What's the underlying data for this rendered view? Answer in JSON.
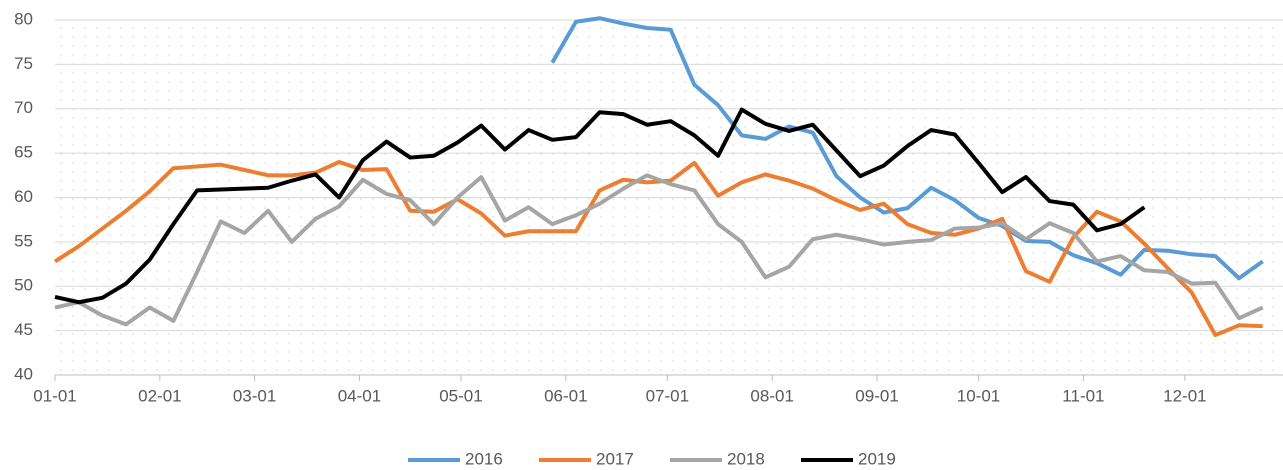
{
  "chart_data": {
    "type": "line",
    "x": [
      0,
      7,
      14,
      21,
      28,
      35,
      42,
      49,
      56,
      63,
      70,
      77,
      84,
      91,
      98,
      105,
      112,
      119,
      126,
      133,
      140,
      147,
      154,
      161,
      168,
      175,
      182,
      189,
      196,
      203,
      210,
      217,
      224,
      231,
      238,
      245,
      252,
      259,
      266,
      273,
      280,
      287,
      294,
      301,
      308,
      315,
      322,
      329,
      336,
      343,
      350,
      357
    ],
    "xlim": [
      0,
      363
    ],
    "xticks": [
      {
        "value": 0,
        "label": "01-01"
      },
      {
        "value": 31,
        "label": "02-01"
      },
      {
        "value": 59,
        "label": "03-01"
      },
      {
        "value": 90,
        "label": "04-01"
      },
      {
        "value": 120,
        "label": "05-01"
      },
      {
        "value": 151,
        "label": "06-01"
      },
      {
        "value": 181,
        "label": "07-01"
      },
      {
        "value": 212,
        "label": "08-01"
      },
      {
        "value": 243,
        "label": "09-01"
      },
      {
        "value": 273,
        "label": "10-01"
      },
      {
        "value": 304,
        "label": "11-01"
      },
      {
        "value": 334,
        "label": "12-01"
      }
    ],
    "ylim": [
      40,
      80
    ],
    "yticks": [
      40,
      45,
      50,
      55,
      60,
      65,
      70,
      75,
      80
    ],
    "grid": true,
    "legend": "bottom",
    "series": [
      {
        "name": "2016",
        "color": "#5b9bd5",
        "values": [
          null,
          null,
          null,
          null,
          null,
          null,
          null,
          null,
          null,
          null,
          null,
          null,
          null,
          null,
          null,
          null,
          null,
          null,
          null,
          null,
          null,
          75.2,
          79.8,
          80.2,
          79.6,
          79.1,
          78.9,
          72.7,
          70.4,
          67.0,
          66.6,
          68.0,
          67.3,
          62.4,
          60.0,
          58.3,
          58.8,
          61.1,
          59.7,
          57.7,
          56.8,
          55.1,
          55.0,
          53.5,
          52.6,
          51.3,
          54.1,
          54.0,
          53.6,
          53.4,
          50.9,
          52.8
        ]
      },
      {
        "name": "2017",
        "color": "#ed7d31",
        "values": [
          52.8,
          54.5,
          56.5,
          58.5,
          60.7,
          63.3,
          63.5,
          63.7,
          63.1,
          62.5,
          62.5,
          62.8,
          64.0,
          63.1,
          63.2,
          58.5,
          58.4,
          59.8,
          58.2,
          55.7,
          56.2,
          56.2,
          56.2,
          60.8,
          62.0,
          61.7,
          61.9,
          63.9,
          60.2,
          61.7,
          62.6,
          61.9,
          61.0,
          59.7,
          58.6,
          59.3,
          57.0,
          56.0,
          55.8,
          56.5,
          57.6,
          51.7,
          50.5,
          55.5,
          58.4,
          57.3,
          54.8,
          52.0,
          49.3,
          44.5,
          45.6,
          45.5
        ]
      },
      {
        "name": "2018",
        "color": "#a5a5a5",
        "values": [
          47.6,
          48.2,
          46.7,
          45.7,
          47.6,
          46.1,
          51.6,
          57.3,
          56.0,
          58.5,
          55.0,
          57.6,
          59.0,
          62.0,
          60.4,
          59.7,
          57.0,
          60.0,
          62.3,
          57.4,
          58.9,
          57.0,
          58.0,
          59.3,
          61.0,
          62.5,
          61.5,
          60.8,
          57.0,
          55.0,
          51.0,
          52.2,
          55.3,
          55.8,
          55.3,
          54.7,
          55.0,
          55.2,
          56.5,
          56.6,
          57.1,
          55.3,
          57.1,
          56.0,
          52.8,
          53.4,
          51.8,
          51.6,
          50.3,
          50.4,
          46.4,
          47.6
        ]
      },
      {
        "name": "2019",
        "color": "#000000",
        "values": [
          48.8,
          48.2,
          48.7,
          50.3,
          53.0,
          57.0,
          60.8,
          60.9,
          61.0,
          61.1,
          61.9,
          62.6,
          60.0,
          64.2,
          66.3,
          64.5,
          64.7,
          66.2,
          68.1,
          65.4,
          67.6,
          66.5,
          66.8,
          69.6,
          69.4,
          68.2,
          68.6,
          67.0,
          64.7,
          69.9,
          68.3,
          67.5,
          68.2,
          65.3,
          62.4,
          63.6,
          65.8,
          67.6,
          67.1,
          63.9,
          60.6,
          62.3,
          59.6,
          59.2,
          56.3,
          57.0,
          58.9,
          null,
          null,
          null,
          null,
          null
        ]
      }
    ]
  }
}
